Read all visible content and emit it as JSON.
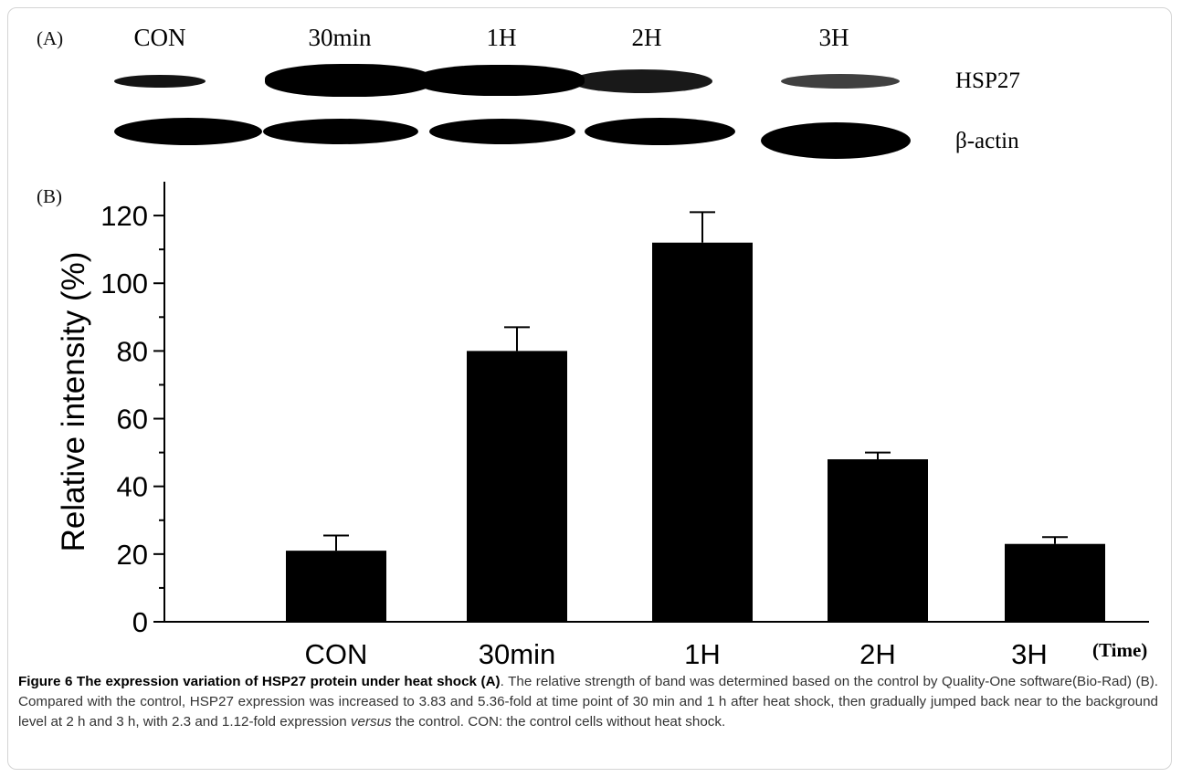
{
  "blot": {
    "panel_label": "(A)",
    "lanes": [
      "CON",
      "30min",
      "1H",
      "2H",
      "3H"
    ],
    "rows": [
      "HSP27",
      "β-actin"
    ]
  },
  "chart_data": {
    "type": "bar",
    "panel_label": "(B)",
    "categories": [
      "CON",
      "30min",
      "1H",
      "2H",
      "3H"
    ],
    "values": [
      21,
      80,
      112,
      48,
      23
    ],
    "errors": [
      4.5,
      7,
      9,
      2,
      2
    ],
    "ylabel": "Relative intensity (%)",
    "xlabel": "(Time)",
    "ylim": [
      0,
      130
    ],
    "yticks": [
      0,
      20,
      40,
      60,
      80,
      100,
      120
    ],
    "bar_color": "#000000",
    "grid": false
  },
  "caption": {
    "title": "Figure 6 The expression variation of HSP27 protein under heat shock (A)",
    "body": ". The relative strength of band was determined based on the control by Quality-One software(Bio-Rad) (B). Compared with the control, HSP27 expression was increased to 3.83 and 5.36-fold at time point of 30 min and 1 h after heat shock, then gradually jumped back near to the background level at 2 h and 3 h, with 2.3 and 1.12-fold expression",
    "italic": "versus",
    "tail": " the control. CON: the control cells without heat shock."
  }
}
